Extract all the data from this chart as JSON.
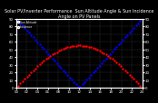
{
  "title": "Solar PV/Inverter Performance  Sun Altitude Angle & Sun Incidence Angle on PV Panels",
  "legend1": "Sun Altitude",
  "legend2": "Incidence",
  "blue_color": "#0000ff",
  "red_color": "#ff0000",
  "background": "#000000",
  "plot_bg": "#000000",
  "grid_color": "#555555",
  "title_color": "#ffffff",
  "tick_color": "#ffffff",
  "xlim": [
    0,
    1
  ],
  "ylim": [
    0,
    90
  ],
  "title_fontsize": 3.5,
  "label_fontsize": 2.8,
  "dot_size": 1.5
}
